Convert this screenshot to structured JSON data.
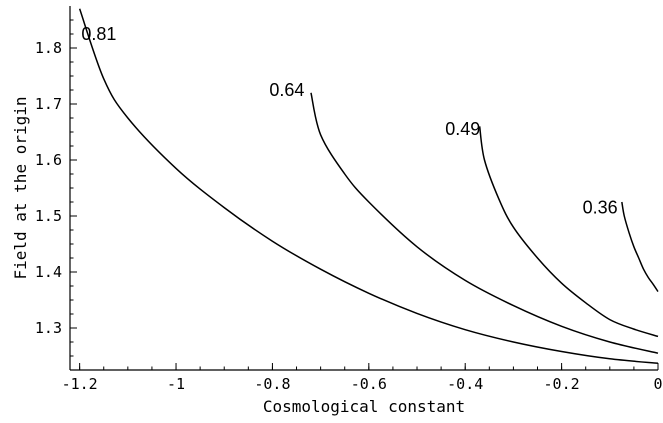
{
  "chart_data": {
    "type": "line",
    "title": "",
    "xlabel": "Cosmological constant",
    "ylabel": "Field at the origin",
    "xlim": [
      -1.22,
      0.0
    ],
    "ylim": [
      1.225,
      1.875
    ],
    "xticks": [
      -1.2,
      -1.0,
      -0.8,
      -0.6,
      -0.4,
      -0.2,
      0.0
    ],
    "xtick_labels": [
      "-1.2",
      "-1",
      "-0.8",
      "-0.6",
      "-0.4",
      "-0.2",
      "0"
    ],
    "yticks": [
      1.3,
      1.4,
      1.5,
      1.6,
      1.7,
      1.8
    ],
    "ytick_labels": [
      "1.3",
      "1.4",
      "1.5",
      "1.6",
      "1.7",
      "1.8"
    ],
    "grid": false,
    "series": [
      {
        "name": "0.81",
        "x": [
          -1.2,
          -1.15,
          -1.1,
          -1.0,
          -0.9,
          -0.8,
          -0.7,
          -0.6,
          -0.5,
          -0.4,
          -0.3,
          -0.2,
          -0.1,
          0.0
        ],
        "y": [
          1.87,
          1.745,
          1.675,
          1.585,
          1.515,
          1.455,
          1.405,
          1.362,
          1.326,
          1.297,
          1.275,
          1.258,
          1.245,
          1.237
        ]
      },
      {
        "name": "0.64",
        "x": [
          -0.72,
          -0.7,
          -0.65,
          -0.6,
          -0.5,
          -0.4,
          -0.3,
          -0.2,
          -0.1,
          0.0
        ],
        "y": [
          1.72,
          1.645,
          1.575,
          1.525,
          1.445,
          1.385,
          1.34,
          1.303,
          1.275,
          1.255
        ]
      },
      {
        "name": "0.49",
        "x": [
          -0.37,
          -0.36,
          -0.33,
          -0.3,
          -0.25,
          -0.2,
          -0.15,
          -0.1,
          -0.05,
          0.0
        ],
        "y": [
          1.66,
          1.6,
          1.53,
          1.48,
          1.425,
          1.38,
          1.345,
          1.315,
          1.298,
          1.285
        ]
      },
      {
        "name": "0.36",
        "x": [
          -0.075,
          -0.07,
          -0.06,
          -0.05,
          -0.04,
          -0.03,
          -0.02,
          -0.01,
          0.0
        ],
        "y": [
          1.525,
          1.5,
          1.47,
          1.445,
          1.425,
          1.405,
          1.39,
          1.378,
          1.365
        ]
      }
    ],
    "curve_labels": [
      {
        "text": "0.81",
        "x": -1.16,
        "y": 1.825
      },
      {
        "text": "0.64",
        "x": -0.77,
        "y": 1.725
      },
      {
        "text": "0.49",
        "x": -0.405,
        "y": 1.655
      },
      {
        "text": "0.36",
        "x": -0.12,
        "y": 1.515
      }
    ]
  }
}
